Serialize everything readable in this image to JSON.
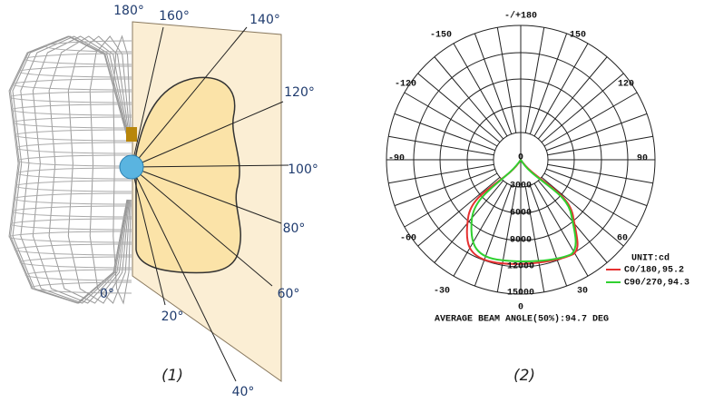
{
  "figure1": {
    "angle_labels": [
      "180°",
      "160°",
      "140°",
      "120°",
      "100°",
      "80°",
      "60°",
      "40°",
      "20°",
      "0°"
    ],
    "caption": "(1)"
  },
  "figure2": {
    "angle_labels": [
      "-/+180",
      "150",
      "-150",
      "120",
      "-120",
      "90",
      "-90",
      "60",
      "-60",
      "30",
      "-30",
      "0"
    ],
    "radial_labels": [
      "0",
      "3000",
      "6000",
      "9000",
      "12000",
      "15000"
    ],
    "unit": "UNIT:cd",
    "legend": [
      "C0/180,95.2",
      "C90/270,94.3"
    ],
    "note": "AVERAGE BEAM ANGLE(50%):94.7 DEG",
    "caption": "(2)"
  }
}
